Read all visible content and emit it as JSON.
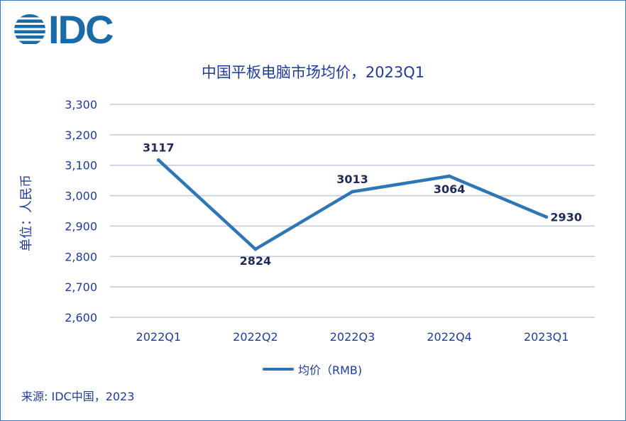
{
  "logo": {
    "text": "IDC",
    "icon": "idc-globe-icon",
    "color": "#1a6aa8"
  },
  "chart_data": {
    "type": "line",
    "title": "中国平板电脑市场均价，2023Q1",
    "ylabel": "单位：人民币",
    "xlabel": "",
    "categories": [
      "2022Q1",
      "2022Q2",
      "2022Q3",
      "2022Q4",
      "2023Q1"
    ],
    "series": [
      {
        "name": "均价（RMB)",
        "values": [
          3117,
          2824,
          3013,
          3064,
          2930
        ],
        "color": "#2e77b4"
      }
    ],
    "data_labels": [
      "3117",
      "2824",
      "3013",
      "3064",
      "2930"
    ],
    "ylim": [
      2600,
      3300
    ],
    "yticks": [
      2600,
      2700,
      2800,
      2900,
      3000,
      3100,
      3200,
      3300
    ],
    "ytick_labels": [
      "2,600",
      "2,700",
      "2,800",
      "2,900",
      "3,000",
      "3,100",
      "3,200",
      "3,300"
    ],
    "grid": true,
    "legend_position": "bottom"
  },
  "source": "来源: IDC中国，2023"
}
